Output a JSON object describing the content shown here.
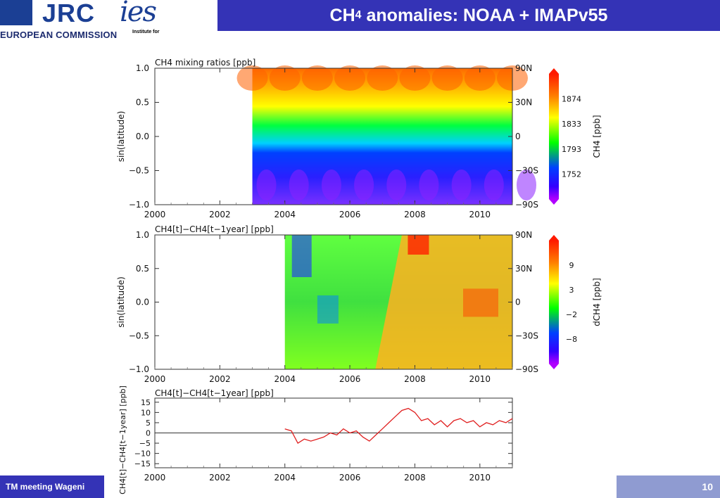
{
  "header": {
    "title_main": "CH",
    "title_sub": "4",
    "title_rest": " anomalies: NOAA + IMAPv55"
  },
  "logos": {
    "jrc": "JRC",
    "european_commission": "EUROPEAN COMMISSION",
    "ies": "ies",
    "ies_sub": "Institute for"
  },
  "footer": {
    "left_text": "TM meeting Wageni",
    "page_number": "10"
  },
  "colors": {
    "header_bg": "#3433b6",
    "footer_right_bg": "#8f9bd1",
    "line": "#e02020"
  },
  "chart_data": [
    {
      "type": "heatmap",
      "title": "CH4 mixing ratios [ppb]",
      "ylabel": "sin(latitude)",
      "xlim": [
        2000,
        2011
      ],
      "ylim": [
        -1.0,
        1.0
      ],
      "x_ticks": [
        "2000",
        "2002",
        "2004",
        "2006",
        "2008",
        "2010"
      ],
      "y_ticks": [
        "1.0",
        "0.5",
        "0.0",
        "−0.5",
        "−1.0"
      ],
      "lat_ticks": [
        "90N",
        "30N",
        "0",
        "−30S",
        "−90S"
      ],
      "data_start": 2003.0,
      "colorbar": {
        "label": "CH4 [ppb]",
        "ticks": [
          "1874",
          "1833",
          "1793",
          "1752"
        ]
      }
    },
    {
      "type": "heatmap",
      "title": "CH4[t]−CH4[t−1year] [ppb]",
      "ylabel": "sin(latitude)",
      "xlim": [
        2000,
        2011
      ],
      "ylim": [
        -1.0,
        1.0
      ],
      "x_ticks": [
        "2000",
        "2002",
        "2004",
        "2006",
        "2008",
        "2010"
      ],
      "y_ticks": [
        "1.0",
        "0.5",
        "0.0",
        "−0.5",
        "−1.0"
      ],
      "lat_ticks": [
        "90N",
        "30N",
        "0",
        "−30S",
        "−90S"
      ],
      "data_start": 2004.0,
      "colorbar": {
        "label": "dCH4 [ppb]",
        "ticks": [
          "9",
          "3",
          "−2",
          "−8"
        ]
      }
    },
    {
      "type": "line",
      "title": "CH4[t]−CH4[t−1year] [ppb]",
      "ylabel": "CH4[t]−CH4[t−1year] [ppb]",
      "xlim": [
        2000,
        2011
      ],
      "ylim": [
        -17,
        17
      ],
      "x_ticks": [
        "2000",
        "2002",
        "2004",
        "2006",
        "2008",
        "2010"
      ],
      "y_ticks": [
        "15",
        "10",
        "5",
        "0",
        "−5",
        "−10",
        "−15"
      ],
      "x": [
        2004.0,
        2004.2,
        2004.4,
        2004.6,
        2004.8,
        2005.0,
        2005.2,
        2005.4,
        2005.6,
        2005.8,
        2006.0,
        2006.2,
        2006.4,
        2006.6,
        2006.8,
        2007.0,
        2007.2,
        2007.4,
        2007.6,
        2007.8,
        2008.0,
        2008.2,
        2008.4,
        2008.6,
        2008.8,
        2009.0,
        2009.2,
        2009.4,
        2009.6,
        2009.8,
        2010.0,
        2010.2,
        2010.4,
        2010.6,
        2010.8,
        2011.0
      ],
      "y": [
        2,
        1,
        -5,
        -3,
        -4,
        -3,
        -2,
        0,
        -1,
        2,
        0,
        1,
        -2,
        -4,
        -1,
        2,
        5,
        8,
        11,
        12,
        10,
        6,
        7,
        4,
        6,
        3,
        6,
        7,
        5,
        6,
        3,
        5,
        4,
        6,
        5,
        7
      ]
    }
  ]
}
